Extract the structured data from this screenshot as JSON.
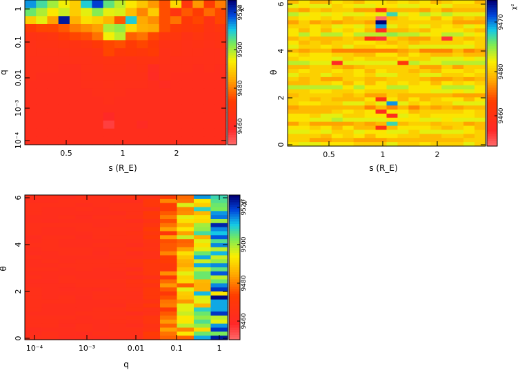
{
  "chart_data": [
    {
      "type": "heatmap",
      "panel": "top-left",
      "xlabel": "s (R_E)",
      "ylabel": "q",
      "x_ticks": [
        "0.5",
        "1",
        "2"
      ],
      "y_ticks": [
        "1",
        "0.1",
        "0.01",
        "10^-3",
        "10^-4"
      ],
      "x_scale": "log",
      "y_scale": "log",
      "xlim": [
        0.3,
        4.3
      ],
      "ylim": [
        6e-05,
        2.0
      ],
      "colorbar": {
        "label": "χ²",
        "ticks": [
          "9520",
          "9500",
          "9480",
          "9460"
        ],
        "range": [
          9445,
          9525
        ]
      },
      "grid": {
        "columns": 18,
        "rows": 18
      },
      "rows_top_to_bottom": [
        [
          9512,
          9505,
          9498,
          9492,
          9486,
          9508,
          9518,
          9503,
          9496,
          9490,
          9485,
          9479,
          9471,
          9488,
          9464,
          9479,
          9468,
          9476
        ],
        [
          9502,
          9497,
          9490,
          9495,
          9486,
          9493,
          9500,
          9493,
          9494,
          9484,
          9477,
          9486,
          9471,
          9463,
          9472,
          9468,
          9474,
          9470
        ],
        [
          9486,
          9493,
          9480,
          9522,
          9482,
          9489,
          9487,
          9483,
          9472,
          9508,
          9481,
          9478,
          9471,
          9475,
          9466,
          9470,
          9462,
          9470
        ],
        [
          9467,
          9470,
          9470,
          9472,
          9476,
          9478,
          9480,
          9497,
          9499,
          9488,
          9482,
          9481,
          9471,
          9467,
          9465,
          9466,
          9462,
          9464
        ],
        [
          9461,
          9462,
          9463,
          9467,
          9470,
          9471,
          9475,
          9492,
          9496,
          9473,
          9475,
          9470,
          9464,
          9464,
          9461,
          9463,
          9461,
          9462
        ],
        [
          9460,
          9461,
          9461,
          9462,
          9462,
          9463,
          9466,
          9470,
          9471,
          9467,
          9470,
          9466,
          9461,
          9461,
          9460,
          9461,
          9460,
          9461
        ],
        [
          9460,
          9460,
          9460,
          9460,
          9461,
          9461,
          9462,
          9470,
          9465,
          9466,
          9465,
          9467,
          9460,
          9461,
          9460,
          9460,
          9459,
          9459
        ],
        [
          9459,
          9459,
          9459,
          9459,
          9460,
          9460,
          9461,
          9462,
          9462,
          9461,
          9462,
          9462,
          9460,
          9459,
          9459,
          9459,
          9459,
          9459
        ],
        [
          9459,
          9459,
          9459,
          9458,
          9458,
          9460,
          9460,
          9461,
          9461,
          9460,
          9461,
          9456,
          9459,
          9459,
          9459,
          9458,
          9459,
          9458
        ],
        [
          9459,
          9458,
          9458,
          9458,
          9458,
          9459,
          9460,
          9460,
          9460,
          9460,
          9460,
          9455,
          9459,
          9458,
          9458,
          9458,
          9458,
          9458
        ],
        [
          9458,
          9458,
          9458,
          9458,
          9458,
          9459,
          9459,
          9460,
          9459,
          9459,
          9459,
          9458,
          9456,
          9458,
          9458,
          9458,
          9458,
          9458
        ],
        [
          9458,
          9458,
          9458,
          9458,
          9458,
          9458,
          9459,
          9459,
          9459,
          9458,
          9458,
          9458,
          9458,
          9458,
          9458,
          9458,
          9458,
          9458
        ],
        [
          9458,
          9458,
          9458,
          9458,
          9458,
          9458,
          9458,
          9459,
          9458,
          9458,
          9458,
          9458,
          9458,
          9458,
          9458,
          9458,
          9458,
          9458
        ],
        [
          9458,
          9458,
          9458,
          9458,
          9458,
          9458,
          9458,
          9458,
          9458,
          9458,
          9458,
          9458,
          9458,
          9458,
          9458,
          9458,
          9458,
          9458
        ],
        [
          9458,
          9458,
          9458,
          9458,
          9458,
          9458,
          9458,
          9454,
          9458,
          9458,
          9458,
          9458,
          9458,
          9458,
          9458,
          9458,
          9458,
          9458
        ],
        [
          9458,
          9458,
          9458,
          9458,
          9458,
          9458,
          9458,
          9450,
          9458,
          9458,
          9455,
          9458,
          9458,
          9458,
          9458,
          9458,
          9458,
          9458
        ],
        [
          9458,
          9458,
          9458,
          9458,
          9458,
          9458,
          9458,
          9458,
          9458,
          9458,
          9458,
          9458,
          9458,
          9458,
          9458,
          9458,
          9458,
          9458
        ],
        [
          9458,
          9458,
          9458,
          9458,
          9458,
          9458,
          9458,
          9458,
          9458,
          9458,
          9458,
          9458,
          9458,
          9458,
          9458,
          9458,
          9458,
          9458
        ]
      ]
    },
    {
      "type": "heatmap",
      "panel": "top-right",
      "xlabel": "s (R_E)",
      "ylabel": "θ",
      "x_ticks": [
        "0.5",
        "1",
        "2"
      ],
      "y_ticks": [
        "0",
        "2",
        "4",
        "6"
      ],
      "x_scale": "log",
      "xlim": [
        0.3,
        4.3
      ],
      "ylim": [
        0,
        6.28
      ],
      "colorbar": {
        "label": "χ²",
        "ticks": [
          "9470",
          "9480",
          "9460"
        ],
        "range": [
          9453,
          9478
        ]
      },
      "grid": {
        "columns": 18,
        "rows": 36
      },
      "base": 9466,
      "row_variation": [
        0,
        1,
        -1,
        2,
        0,
        -1,
        1,
        0,
        2,
        -1,
        0,
        1,
        -2,
        0,
        1,
        2,
        -1,
        0,
        1,
        -1,
        0,
        2,
        1,
        -1,
        0,
        1,
        -2,
        0,
        1,
        2,
        -1,
        0,
        1,
        0,
        -1,
        1
      ],
      "hot_cells": [
        {
          "col": 8,
          "row": 2,
          "value": 9458
        },
        {
          "col": 9,
          "row": 3,
          "value": 9472
        },
        {
          "col": 8,
          "row": 4,
          "value": 9453
        },
        {
          "col": 8,
          "row": 5,
          "value": 9478
        },
        {
          "col": 8,
          "row": 6,
          "value": 9474
        },
        {
          "col": 8,
          "row": 7,
          "value": 9456
        },
        {
          "col": 9,
          "row": 8,
          "value": 9470
        },
        {
          "col": 7,
          "row": 9,
          "value": 9458
        },
        {
          "col": 8,
          "row": 9,
          "value": 9455
        },
        {
          "col": 14,
          "row": 9,
          "value": 9455
        },
        {
          "col": 4,
          "row": 15,
          "value": 9456
        },
        {
          "col": 10,
          "row": 15,
          "value": 9459
        },
        {
          "col": 8,
          "row": 24,
          "value": 9458
        },
        {
          "col": 9,
          "row": 25,
          "value": 9474
        },
        {
          "col": 8,
          "row": 27,
          "value": 9457
        },
        {
          "col": 9,
          "row": 28,
          "value": 9457
        },
        {
          "col": 9,
          "row": 30,
          "value": 9472
        },
        {
          "col": 8,
          "row": 31,
          "value": 9458
        }
      ]
    },
    {
      "type": "heatmap",
      "panel": "bottom-left",
      "xlabel": "q",
      "ylabel": "θ",
      "x_ticks": [
        "10^-4",
        "10^-3",
        "0.01",
        "0.1",
        "1"
      ],
      "y_ticks": [
        "0",
        "2",
        "4",
        "6"
      ],
      "x_scale": "log",
      "xlim": [
        6e-05,
        2.0
      ],
      "ylim": [
        0,
        6.28
      ],
      "colorbar": {
        "label": "χ²",
        "ticks": [
          "9520",
          "9500",
          "9480",
          "9460"
        ],
        "range": [
          9445,
          9525
        ]
      },
      "grid": {
        "columns": 12,
        "rows": 36
      },
      "column_base": [
        9458,
        9458,
        9458,
        9458,
        9458,
        9459,
        9459,
        9462,
        9470,
        9480,
        9490,
        9500
      ],
      "column_spread": [
        1,
        1,
        1,
        1,
        1,
        1,
        2,
        4,
        8,
        12,
        16,
        18
      ]
    }
  ]
}
